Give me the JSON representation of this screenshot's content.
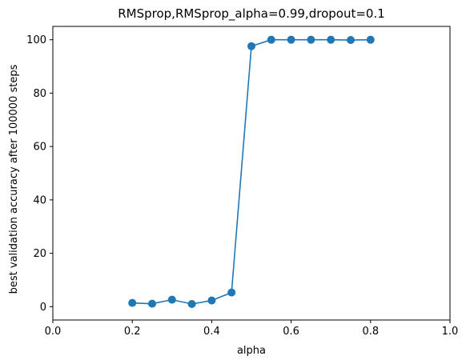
{
  "chart_data": {
    "type": "line",
    "title": "RMSprop,RMSprop_alpha=0.99,dropout=0.1",
    "xlabel": "alpha",
    "ylabel": "best validation accuracy after 100000 steps",
    "xlim": [
      0.0,
      1.0
    ],
    "ylim": [
      -5,
      105
    ],
    "xticks": [
      0.0,
      0.2,
      0.4,
      0.6,
      0.8,
      1.0
    ],
    "xtick_labels": [
      "0.0",
      "0.2",
      "0.4",
      "0.6",
      "0.8",
      "1.0"
    ],
    "yticks": [
      0,
      20,
      40,
      60,
      80,
      100
    ],
    "ytick_labels": [
      "0",
      "20",
      "40",
      "60",
      "80",
      "100"
    ],
    "grid": false,
    "color": "#1f77b4",
    "series": [
      {
        "x": [
          0.2,
          0.25,
          0.3,
          0.35,
          0.4,
          0.45,
          0.5,
          0.55,
          0.6,
          0.65,
          0.7,
          0.75,
          0.8
        ],
        "y": [
          1.4,
          1.1,
          2.6,
          1.0,
          2.3,
          5.3,
          97.6,
          100.0,
          100.0,
          100.0,
          100.0,
          99.9,
          100.0
        ]
      }
    ]
  }
}
